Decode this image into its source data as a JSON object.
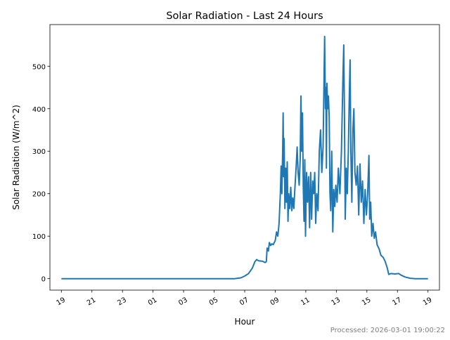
{
  "chart_data": {
    "type": "line",
    "title": "Solar Radiation - Last 24 Hours",
    "xlabel": "Hour",
    "ylabel": "Solar Radiation (W/m^2)",
    "xlim": [
      "2026-02-28 18:15",
      "2026-03-01 19:45"
    ],
    "ylim": [
      -27,
      598
    ],
    "yticks": [
      0,
      100,
      200,
      300,
      400,
      500
    ],
    "xticks": [
      {
        "t": "2026-02-28 19:00",
        "label": "19"
      },
      {
        "t": "2026-02-28 21:00",
        "label": "21"
      },
      {
        "t": "2026-02-28 23:00",
        "label": "23"
      },
      {
        "t": "2026-03-01 01:00",
        "label": "01"
      },
      {
        "t": "2026-03-01 03:00",
        "label": "03"
      },
      {
        "t": "2026-03-01 05:00",
        "label": "05"
      },
      {
        "t": "2026-03-01 07:00",
        "label": "07"
      },
      {
        "t": "2026-03-01 09:00",
        "label": "09"
      },
      {
        "t": "2026-03-01 11:00",
        "label": "11"
      },
      {
        "t": "2026-03-01 13:00",
        "label": "13"
      },
      {
        "t": "2026-03-01 15:00",
        "label": "15"
      },
      {
        "t": "2026-03-01 17:00",
        "label": "17"
      },
      {
        "t": "2026-03-01 19:00",
        "label": "19"
      }
    ],
    "grid": false,
    "color": "#1f77b4",
    "series": [
      {
        "points": [
          [
            "2026-02-28 19:00",
            0
          ],
          [
            "2026-03-01 06:20",
            0
          ],
          [
            "2026-03-01 06:45",
            2
          ],
          [
            "2026-03-01 07:00",
            6
          ],
          [
            "2026-03-01 07:15",
            12
          ],
          [
            "2026-03-01 07:30",
            25
          ],
          [
            "2026-03-01 07:40",
            40
          ],
          [
            "2026-03-01 07:47",
            45
          ],
          [
            "2026-03-01 07:55",
            42
          ],
          [
            "2026-03-01 08:10",
            41
          ],
          [
            "2026-03-01 08:20",
            38
          ],
          [
            "2026-03-01 08:25",
            40
          ],
          [
            "2026-03-01 08:28",
            72
          ],
          [
            "2026-03-01 08:33",
            65
          ],
          [
            "2026-03-01 08:37",
            85
          ],
          [
            "2026-03-01 08:42",
            78
          ],
          [
            "2026-03-01 08:47",
            82
          ],
          [
            "2026-03-01 08:52",
            80
          ],
          [
            "2026-03-01 09:00",
            90
          ],
          [
            "2026-03-01 09:05",
            110
          ],
          [
            "2026-03-01 09:10",
            100
          ],
          [
            "2026-03-01 09:15",
            130
          ],
          [
            "2026-03-01 09:20",
            200
          ],
          [
            "2026-03-01 09:23",
            265
          ],
          [
            "2026-03-01 09:26",
            200
          ],
          [
            "2026-03-01 09:29",
            300
          ],
          [
            "2026-03-01 09:31",
            390
          ],
          [
            "2026-03-01 09:33",
            240
          ],
          [
            "2026-03-01 09:35",
            330
          ],
          [
            "2026-03-01 09:38",
            165
          ],
          [
            "2026-03-01 09:41",
            260
          ],
          [
            "2026-03-01 09:44",
            180
          ],
          [
            "2026-03-01 09:47",
            275
          ],
          [
            "2026-03-01 09:50",
            135
          ],
          [
            "2026-03-01 09:53",
            200
          ],
          [
            "2026-03-01 09:57",
            165
          ],
          [
            "2026-03-01 10:01",
            215
          ],
          [
            "2026-03-01 10:05",
            160
          ],
          [
            "2026-03-01 10:09",
            190
          ],
          [
            "2026-03-01 10:13",
            165
          ],
          [
            "2026-03-01 10:17",
            210
          ],
          [
            "2026-03-01 10:22",
            260
          ],
          [
            "2026-03-01 10:26",
            310
          ],
          [
            "2026-03-01 10:30",
            250
          ],
          [
            "2026-03-01 10:34",
            220
          ],
          [
            "2026-03-01 10:38",
            280
          ],
          [
            "2026-03-01 10:41",
            430
          ],
          [
            "2026-03-01 10:44",
            300
          ],
          [
            "2026-03-01 10:47",
            390
          ],
          [
            "2026-03-01 10:50",
            220
          ],
          [
            "2026-03-01 10:53",
            135
          ],
          [
            "2026-03-01 10:56",
            280
          ],
          [
            "2026-03-01 10:59",
            100
          ],
          [
            "2026-03-01 11:03",
            250
          ],
          [
            "2026-03-01 11:07",
            180
          ],
          [
            "2026-03-01 11:11",
            240
          ],
          [
            "2026-03-01 11:15",
            120
          ],
          [
            "2026-03-01 11:19",
            250
          ],
          [
            "2026-03-01 11:23",
            140
          ],
          [
            "2026-03-01 11:27",
            230
          ],
          [
            "2026-03-01 11:31",
            200
          ],
          [
            "2026-03-01 11:35",
            250
          ],
          [
            "2026-03-01 11:39",
            130
          ],
          [
            "2026-03-01 11:43",
            200
          ],
          [
            "2026-03-01 11:48",
            160
          ],
          [
            "2026-03-01 11:53",
            300
          ],
          [
            "2026-03-01 11:58",
            350
          ],
          [
            "2026-03-01 12:03",
            250
          ],
          [
            "2026-03-01 12:08",
            310
          ],
          [
            "2026-03-01 12:14",
            570
          ],
          [
            "2026-03-01 12:17",
            400
          ],
          [
            "2026-03-01 12:19",
            450
          ],
          [
            "2026-03-01 12:21",
            260
          ],
          [
            "2026-03-01 12:23",
            460
          ],
          [
            "2026-03-01 12:26",
            400
          ],
          [
            "2026-03-01 12:29",
            430
          ],
          [
            "2026-03-01 12:32",
            380
          ],
          [
            "2026-03-01 12:35",
            200
          ],
          [
            "2026-03-01 12:38",
            160
          ],
          [
            "2026-03-01 12:42",
            300
          ],
          [
            "2026-03-01 12:46",
            110
          ],
          [
            "2026-03-01 12:50",
            210
          ],
          [
            "2026-03-01 12:54",
            170
          ],
          [
            "2026-03-01 12:58",
            220
          ],
          [
            "2026-03-01 13:03",
            180
          ],
          [
            "2026-03-01 13:08",
            260
          ],
          [
            "2026-03-01 13:14",
            200
          ],
          [
            "2026-03-01 13:20",
            300
          ],
          [
            "2026-03-01 13:26",
            480
          ],
          [
            "2026-03-01 13:29",
            550
          ],
          [
            "2026-03-01 13:32",
            380
          ],
          [
            "2026-03-01 13:35",
            140
          ],
          [
            "2026-03-01 13:39",
            260
          ],
          [
            "2026-03-01 13:43",
            200
          ],
          [
            "2026-03-01 13:47",
            300
          ],
          [
            "2026-03-01 13:51",
            430
          ],
          [
            "2026-03-01 13:54",
            515
          ],
          [
            "2026-03-01 13:57",
            300
          ],
          [
            "2026-03-01 14:01",
            180
          ],
          [
            "2026-03-01 14:05",
            350
          ],
          [
            "2026-03-01 14:09",
            400
          ],
          [
            "2026-03-01 14:13",
            250
          ],
          [
            "2026-03-01 14:18",
            220
          ],
          [
            "2026-03-01 14:23",
            265
          ],
          [
            "2026-03-01 14:28",
            150
          ],
          [
            "2026-03-01 14:33",
            270
          ],
          [
            "2026-03-01 14:38",
            180
          ],
          [
            "2026-03-01 14:43",
            230
          ],
          [
            "2026-03-01 14:48",
            130
          ],
          [
            "2026-03-01 14:53",
            210
          ],
          [
            "2026-03-01 14:58",
            150
          ],
          [
            "2026-03-01 15:03",
            200
          ],
          [
            "2026-03-01 15:08",
            290
          ],
          [
            "2026-03-01 15:11",
            140
          ],
          [
            "2026-03-01 15:15",
            180
          ],
          [
            "2026-03-01 15:19",
            100
          ],
          [
            "2026-03-01 15:24",
            130
          ],
          [
            "2026-03-01 15:29",
            95
          ],
          [
            "2026-03-01 15:34",
            110
          ],
          [
            "2026-03-01 15:40",
            80
          ],
          [
            "2026-03-01 15:48",
            70
          ],
          [
            "2026-03-01 15:55",
            55
          ],
          [
            "2026-03-01 16:04",
            50
          ],
          [
            "2026-03-01 16:12",
            40
          ],
          [
            "2026-03-01 16:20",
            25
          ],
          [
            "2026-03-01 16:26",
            10
          ],
          [
            "2026-03-01 16:35",
            12
          ],
          [
            "2026-03-01 16:50",
            11
          ],
          [
            "2026-03-01 17:05",
            12
          ],
          [
            "2026-03-01 17:15",
            8
          ],
          [
            "2026-03-01 17:30",
            4
          ],
          [
            "2026-03-01 17:50",
            1
          ],
          [
            "2026-03-01 18:10",
            0
          ],
          [
            "2026-03-01 19:00",
            0
          ]
        ]
      }
    ]
  },
  "footer": {
    "processed": "Processed: 2026-03-01 19:00:22"
  },
  "footer_color": "#808080"
}
